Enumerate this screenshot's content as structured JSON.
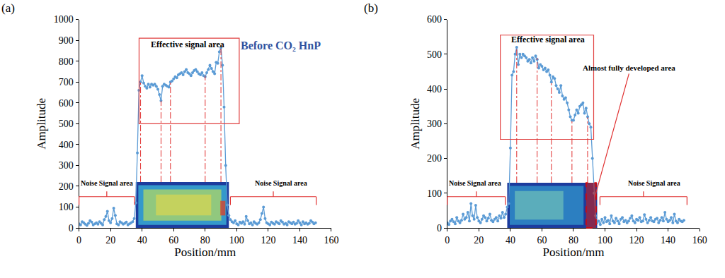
{
  "chart_data": [
    {
      "type": "line",
      "title": "(a)",
      "x_label": "Position/mm",
      "y_label": "Amplitude",
      "color": "#5b9bd5",
      "marker": "circle",
      "line_style": "solid",
      "annotations": [
        "Effective signal area",
        "Before CO₂ HnP",
        "Noise Signal area",
        "Noise Signal area"
      ],
      "x": [
        0,
        1,
        2,
        3,
        4,
        5,
        6,
        7,
        8,
        9,
        10,
        11,
        12,
        13,
        14,
        15,
        16,
        17,
        18,
        19,
        20,
        21,
        22,
        23,
        24,
        25,
        26,
        27,
        28,
        29,
        30,
        31,
        32,
        33,
        34,
        35,
        36,
        37,
        38,
        39,
        40,
        41,
        42,
        43,
        44,
        45,
        46,
        47,
        48,
        49,
        50,
        51,
        52,
        53,
        54,
        55,
        56,
        57,
        58,
        59,
        60,
        61,
        62,
        63,
        64,
        65,
        66,
        67,
        68,
        69,
        70,
        71,
        72,
        73,
        74,
        75,
        76,
        77,
        78,
        79,
        80,
        81,
        82,
        83,
        84,
        85,
        86,
        87,
        88,
        89,
        90,
        91,
        92,
        93,
        94,
        95,
        96,
        97,
        98,
        99,
        100,
        101,
        102,
        103,
        104,
        105,
        106,
        107,
        108,
        109,
        110,
        111,
        112,
        113,
        114,
        115,
        116,
        117,
        118,
        119,
        120,
        121,
        122,
        123,
        124,
        125,
        126,
        127,
        128,
        129,
        130,
        131,
        132,
        133,
        134,
        135,
        136,
        137,
        138,
        139,
        140,
        141,
        142,
        143,
        144,
        145,
        146,
        147,
        148,
        149,
        150
      ],
      "values": [
        20,
        15,
        30,
        25,
        18,
        12,
        22,
        35,
        28,
        15,
        20,
        25,
        18,
        30,
        22,
        15,
        40,
        55,
        80,
        35,
        25,
        45,
        95,
        60,
        20,
        15,
        30,
        25,
        18,
        22,
        28,
        15,
        20,
        25,
        30,
        45,
        120,
        360,
        660,
        700,
        730,
        695,
        680,
        670,
        690,
        675,
        690,
        685,
        690,
        680,
        665,
        640,
        610,
        680,
        690,
        685,
        680,
        675,
        700,
        705,
        715,
        725,
        720,
        735,
        740,
        745,
        735,
        750,
        760,
        745,
        740,
        730,
        745,
        755,
        760,
        750,
        740,
        735,
        745,
        730,
        725,
        745,
        760,
        780,
        765,
        750,
        740,
        795,
        790,
        845,
        865,
        780,
        580,
        300,
        110,
        60,
        40,
        30,
        25,
        35,
        20,
        15,
        28,
        22,
        30,
        18,
        55,
        35,
        20,
        25,
        15,
        30,
        22,
        18,
        25,
        40,
        70,
        100,
        45,
        25,
        20,
        15,
        28,
        22,
        18,
        30,
        25,
        20,
        35,
        28,
        18,
        22,
        15,
        30,
        25,
        20,
        28,
        18,
        22,
        35,
        25,
        15,
        30,
        20,
        25,
        18,
        22,
        35,
        28,
        20,
        25
      ],
      "xlim": [
        0,
        160
      ],
      "xticks": [
        0,
        20,
        40,
        60,
        80,
        100,
        120,
        140,
        160
      ],
      "ylim": [
        0,
        1000
      ],
      "yticks": [
        0,
        100,
        200,
        300,
        400,
        500,
        600,
        700,
        800,
        900,
        1000
      ],
      "grid": false
    },
    {
      "type": "line",
      "title": "(b)",
      "x_label": "Position/mm",
      "y_label": "Amplitude",
      "color": "#5b9bd5",
      "marker": "circle",
      "line_style": "solid",
      "annotations": [
        "Effective signal area",
        "Noise Signal area",
        "Noise Signal area",
        "Almost fully developed area"
      ],
      "x": [
        0,
        1,
        2,
        3,
        4,
        5,
        6,
        7,
        8,
        9,
        10,
        11,
        12,
        13,
        14,
        15,
        16,
        17,
        18,
        19,
        20,
        21,
        22,
        23,
        24,
        25,
        26,
        27,
        28,
        29,
        30,
        31,
        32,
        33,
        34,
        35,
        36,
        37,
        38,
        39,
        40,
        41,
        42,
        43,
        44,
        45,
        46,
        47,
        48,
        49,
        50,
        51,
        52,
        53,
        54,
        55,
        56,
        57,
        58,
        59,
        60,
        61,
        62,
        63,
        64,
        65,
        66,
        67,
        68,
        69,
        70,
        71,
        72,
        73,
        74,
        75,
        76,
        77,
        78,
        79,
        80,
        81,
        82,
        83,
        84,
        85,
        86,
        87,
        88,
        89,
        90,
        91,
        92,
        93,
        94,
        95,
        96,
        97,
        98,
        99,
        100,
        101,
        102,
        103,
        104,
        105,
        106,
        107,
        108,
        109,
        110,
        111,
        112,
        113,
        114,
        115,
        116,
        117,
        118,
        119,
        120,
        121,
        122,
        123,
        124,
        125,
        126,
        127,
        128,
        129,
        130,
        131,
        132,
        133,
        134,
        135,
        136,
        137,
        138,
        139,
        140,
        141,
        142,
        143,
        144,
        145,
        146,
        147,
        148,
        149,
        150
      ],
      "values": [
        15,
        10,
        20,
        25,
        18,
        12,
        30,
        20,
        15,
        22,
        40,
        25,
        30,
        45,
        20,
        70,
        35,
        25,
        65,
        30,
        20,
        15,
        25,
        35,
        30,
        20,
        28,
        40,
        22,
        18,
        25,
        30,
        20,
        35,
        28,
        45,
        30,
        40,
        60,
        70,
        230,
        440,
        450,
        500,
        520,
        470,
        500,
        490,
        500,
        495,
        490,
        480,
        485,
        475,
        490,
        480,
        495,
        485,
        460,
        470,
        465,
        455,
        460,
        450,
        455,
        440,
        420,
        435,
        430,
        410,
        400,
        390,
        410,
        380,
        370,
        375,
        360,
        340,
        320,
        310,
        310,
        325,
        340,
        330,
        350,
        355,
        360,
        330,
        345,
        320,
        300,
        290,
        200,
        100,
        35,
        15,
        20,
        10,
        25,
        15,
        30,
        18,
        22,
        12,
        35,
        20,
        15,
        28,
        20,
        12,
        25,
        30,
        18,
        22,
        15,
        20,
        28,
        35,
        20,
        15,
        25,
        22,
        30,
        18,
        20,
        38,
        25,
        15,
        22,
        30,
        20,
        18,
        25,
        28,
        15,
        22,
        30,
        20,
        45,
        25,
        18,
        22,
        30,
        15,
        40,
        20,
        15,
        25,
        20,
        18,
        22
      ],
      "xlim": [
        0,
        160
      ],
      "xticks": [
        0,
        20,
        40,
        60,
        80,
        100,
        120,
        140,
        160
      ],
      "ylim": [
        0,
        600
      ],
      "yticks": [
        0,
        100,
        200,
        300,
        400,
        500,
        600
      ],
      "grid": false
    }
  ]
}
